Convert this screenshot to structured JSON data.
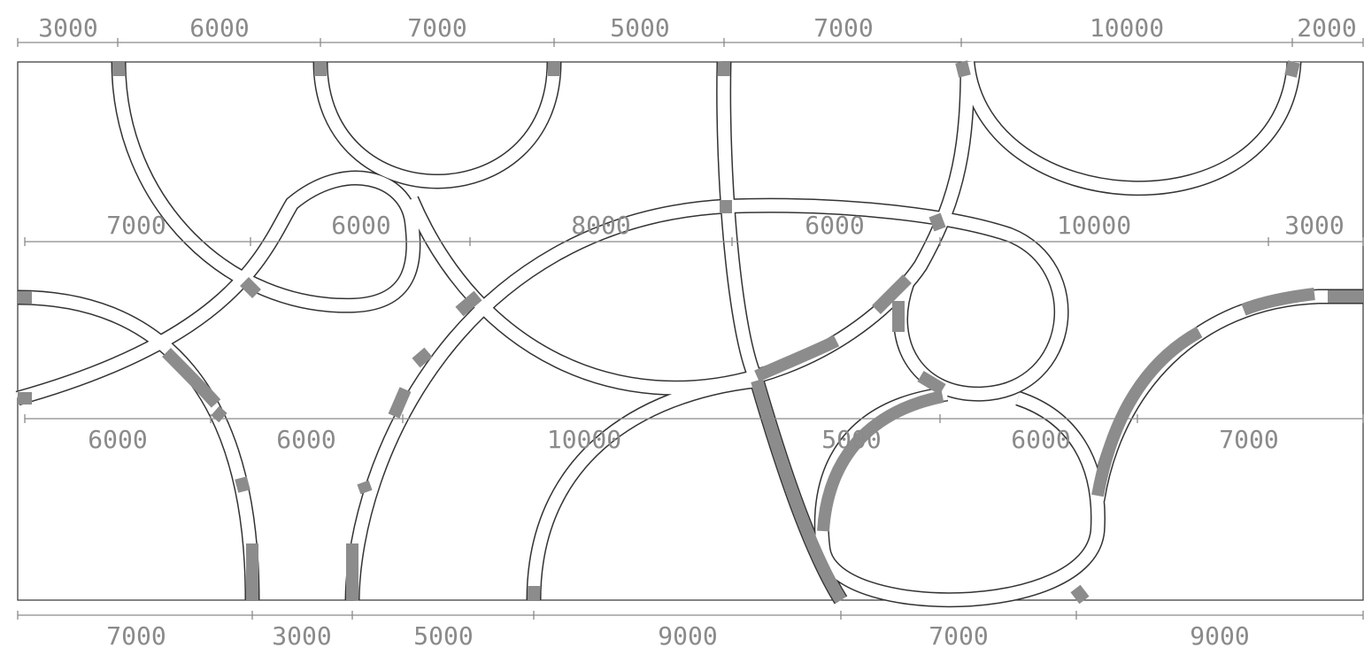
{
  "colors": {
    "dimension": "#8a8a8a",
    "outline": "#333333",
    "shaded_segment": "#8c8c8c",
    "background": "#ffffff"
  },
  "dimension_rows": [
    {
      "id": "top",
      "labels": [
        "3000",
        "6000",
        "7000",
        "5000",
        "7000",
        "10000",
        "2000"
      ]
    },
    {
      "id": "upper",
      "labels": [
        "7000",
        "6000",
        "8000",
        "6000",
        "10000",
        "3000"
      ]
    },
    {
      "id": "lower",
      "labels": [
        "6000",
        "6000",
        "10000",
        "5000",
        "6000",
        "7000"
      ]
    },
    {
      "id": "bottom",
      "labels": [
        "7000",
        "3000",
        "5000",
        "9000",
        "7000",
        "9000"
      ]
    }
  ]
}
